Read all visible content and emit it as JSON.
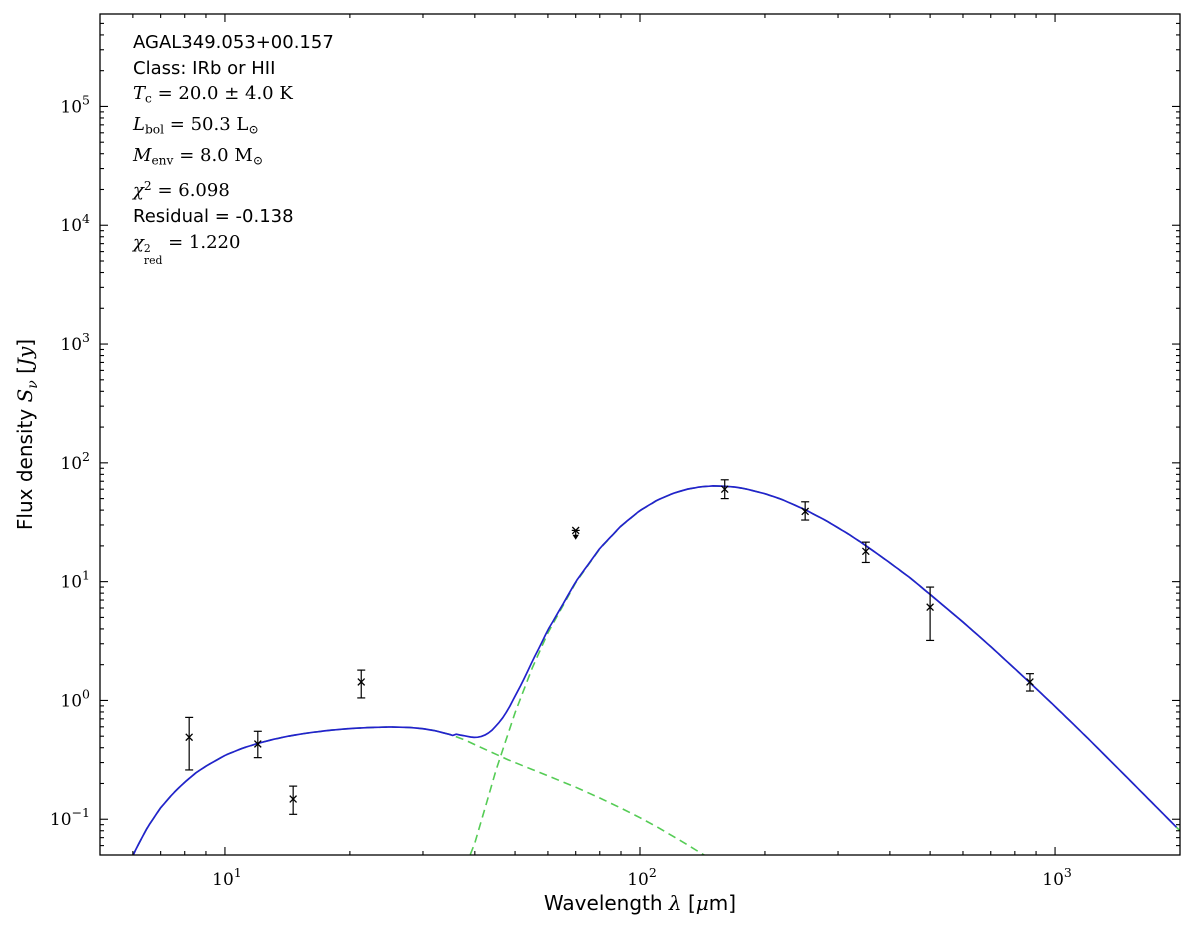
{
  "figure": {
    "background": "#ffffff",
    "frame_color": "#000000"
  },
  "chart_data": {
    "type": "line",
    "xscale": "log",
    "yscale": "log",
    "xlim": [
      5,
      2000
    ],
    "ylim": [
      0.05,
      600000
    ],
    "grid": false,
    "legend": null,
    "xlabel": "Wavelength λ [μm]",
    "ylabel": "Flux density S_ν [Jy]",
    "xlabel_segments": [
      {
        "t": "Wavelength ",
        "s": "sans"
      },
      {
        "t": "λ",
        "s": "it"
      },
      {
        "t": " [",
        "s": "sans"
      },
      {
        "t": "μ",
        "s": "it"
      },
      {
        "t": "m]",
        "s": "sans"
      }
    ],
    "ylabel_segments": [
      {
        "t": "Flux density ",
        "s": "sans"
      },
      {
        "t": "S",
        "s": "it"
      },
      {
        "t": "ν",
        "s": "subit"
      },
      {
        "t": " [",
        "s": "sans"
      },
      {
        "t": "Jy",
        "s": "it"
      },
      {
        "t": "]",
        "s": "sans"
      }
    ],
    "x_tick_exponents": [
      1,
      2,
      3
    ],
    "y_tick_exponents": [
      -1,
      0,
      1,
      2,
      3,
      4,
      5
    ],
    "annotation": {
      "lines": [
        {
          "plain": "AGAL349.053+00.157",
          "segments": [
            {
              "t": "AGAL349.053+00.157",
              "s": "sans"
            }
          ]
        },
        {
          "plain": "Class: IRb or HII",
          "segments": [
            {
              "t": "Class: IRb or HII",
              "s": "sans"
            }
          ]
        },
        {
          "plain": "T_c = 20.0 ± 4.0 K",
          "segments": [
            {
              "t": "T",
              "s": "it"
            },
            {
              "t": "c",
              "s": "sub"
            },
            {
              "t": " = 20.0 ± 4.0 K",
              "s": "rm"
            }
          ]
        },
        {
          "plain": "L_bol = 50.3 L_⊙",
          "segments": [
            {
              "t": "L",
              "s": "it"
            },
            {
              "t": "bol",
              "s": "sub"
            },
            {
              "t": " = 50.3 L",
              "s": "rm"
            },
            {
              "t": "⊙",
              "s": "sub"
            }
          ]
        },
        {
          "plain": "M_env = 8.0 M_⊙",
          "segments": [
            {
              "t": "M",
              "s": "it"
            },
            {
              "t": "env",
              "s": "sub"
            },
            {
              "t": " = 8.0 M",
              "s": "rm"
            },
            {
              "t": "⊙",
              "s": "sub"
            }
          ]
        },
        {
          "plain": "χ² = 6.098",
          "segments": [
            {
              "t": "χ",
              "s": "it"
            },
            {
              "t": "2",
              "s": "sup"
            },
            {
              "t": " = 6.098",
              "s": "rm"
            }
          ]
        },
        {
          "plain": "Residual = -0.138",
          "segments": [
            {
              "t": "Residual = -0.138",
              "s": "sans"
            }
          ]
        },
        {
          "plain": "χ²_red = 1.220",
          "segments": [
            {
              "t": "χ",
              "s": "it"
            },
            {
              "t": "2",
              "s": "stack",
              "top": "2",
              "bot": "red"
            },
            {
              "t": " = 1.220",
              "s": "rm"
            }
          ]
        }
      ]
    },
    "series": [
      {
        "name": "warm-component",
        "role": "component",
        "color": "#55cc55",
        "dash": "8 5",
        "points": [
          [
            5.5,
            0.018
          ],
          [
            6.0,
            0.05
          ],
          [
            6.5,
            0.085
          ],
          [
            7.0,
            0.125
          ],
          [
            7.5,
            0.165
          ],
          [
            8.0,
            0.205
          ],
          [
            8.5,
            0.245
          ],
          [
            9.0,
            0.28
          ],
          [
            10,
            0.345
          ],
          [
            11,
            0.395
          ],
          [
            12,
            0.435
          ],
          [
            13,
            0.468
          ],
          [
            14,
            0.495
          ],
          [
            15,
            0.517
          ],
          [
            16,
            0.535
          ],
          [
            18,
            0.562
          ],
          [
            20,
            0.58
          ],
          [
            22,
            0.591
          ],
          [
            25,
            0.598
          ],
          [
            28,
            0.592
          ],
          [
            30,
            0.578
          ],
          [
            32,
            0.557
          ],
          [
            35,
            0.515
          ],
          [
            38,
            0.462
          ],
          [
            40,
            0.425
          ],
          [
            43,
            0.378
          ],
          [
            45,
            0.352
          ],
          [
            48,
            0.318
          ],
          [
            50,
            0.3
          ],
          [
            55,
            0.262
          ],
          [
            60,
            0.232
          ],
          [
            65,
            0.207
          ],
          [
            70,
            0.186
          ],
          [
            80,
            0.151
          ],
          [
            90,
            0.124
          ],
          [
            100,
            0.103
          ],
          [
            110,
            0.086
          ],
          [
            120,
            0.072
          ],
          [
            130,
            0.061
          ],
          [
            140,
            0.052
          ],
          [
            150,
            0.045
          ],
          [
            160,
            0.039
          ]
        ]
      },
      {
        "name": "cold-component",
        "role": "component",
        "color": "#55cc55",
        "dash": "8 5",
        "points": [
          [
            36,
            0.025
          ],
          [
            38,
            0.04
          ],
          [
            40,
            0.063
          ],
          [
            43,
            0.15
          ],
          [
            45,
            0.26
          ],
          [
            50,
            0.79
          ],
          [
            55,
            1.87
          ],
          [
            60,
            3.7
          ],
          [
            70,
            9.8
          ],
          [
            80,
            18.9
          ],
          [
            90,
            29.3
          ],
          [
            100,
            39.6
          ],
          [
            110,
            48.4
          ],
          [
            120,
            55.2
          ],
          [
            130,
            60
          ],
          [
            140,
            62.8
          ],
          [
            150,
            63.9
          ],
          [
            160,
            63.5
          ],
          [
            170,
            62.5
          ],
          [
            180,
            60.3
          ],
          [
            200,
            55
          ],
          [
            220,
            49.1
          ],
          [
            250,
            40.3
          ],
          [
            280,
            32.8
          ],
          [
            320,
            24.8
          ],
          [
            350,
            20.1
          ],
          [
            400,
            14.4
          ],
          [
            450,
            10.6
          ],
          [
            500,
            7.8
          ],
          [
            600,
            4.57
          ],
          [
            700,
            2.84
          ],
          [
            800,
            1.85
          ],
          [
            870,
            1.41
          ],
          [
            1000,
            0.89
          ],
          [
            1200,
            0.48
          ],
          [
            1500,
            0.22
          ],
          [
            2000,
            0.08
          ]
        ]
      },
      {
        "name": "total-model",
        "role": "total",
        "color": "#2222cc",
        "dash": null,
        "sum_of": [
          "warm-component",
          "cold-component"
        ]
      }
    ],
    "data_points": {
      "marker": "x",
      "color": "#000000",
      "points": [
        {
          "x": 8.2,
          "y": 0.49,
          "y_lo": 0.26,
          "y_hi": 0.72
        },
        {
          "x": 12,
          "y": 0.43,
          "y_lo": 0.33,
          "y_hi": 0.55
        },
        {
          "x": 14.6,
          "y": 0.148,
          "y_lo": 0.11,
          "y_hi": 0.19
        },
        {
          "x": 21.3,
          "y": 1.43,
          "y_lo": 1.05,
          "y_hi": 1.8
        },
        {
          "x": 70,
          "y": 27,
          "upper_limit": true,
          "arrow_to": 22.5
        },
        {
          "x": 160,
          "y": 60,
          "y_lo": 50,
          "y_hi": 72
        },
        {
          "x": 250,
          "y": 39,
          "y_lo": 33,
          "y_hi": 47
        },
        {
          "x": 350,
          "y": 18,
          "y_lo": 14.5,
          "y_hi": 21.5
        },
        {
          "x": 500,
          "y": 6.1,
          "y_lo": 3.2,
          "y_hi": 9.0
        },
        {
          "x": 870,
          "y": 1.43,
          "y_lo": 1.2,
          "y_hi": 1.68
        }
      ]
    }
  }
}
